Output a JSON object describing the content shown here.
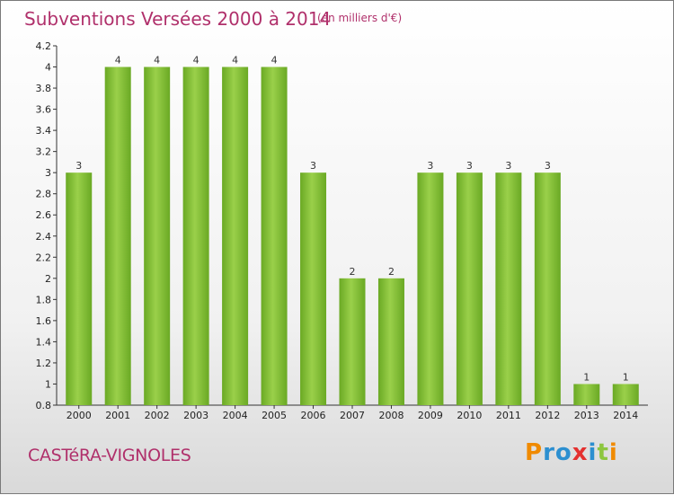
{
  "chart_data": {
    "type": "bar",
    "title": "Subventions Versées 2000 à 2014",
    "subtitle": "(en milliers d'€)",
    "categories": [
      "2000",
      "2001",
      "2002",
      "2003",
      "2004",
      "2005",
      "2006",
      "2007",
      "2008",
      "2009",
      "2010",
      "2011",
      "2012",
      "2013",
      "2014"
    ],
    "values": [
      3,
      4,
      4,
      4,
      4,
      4,
      3,
      2,
      2,
      3,
      3,
      3,
      3,
      1,
      1
    ],
    "value_labels": [
      "3",
      "4",
      "4",
      "4",
      "4",
      "4",
      "3",
      "2",
      "2",
      "3",
      "3",
      "3",
      "3",
      "1",
      "1"
    ],
    "ylim": [
      0.8,
      4.2
    ],
    "yticks": [
      "0.8",
      "1",
      "1.2",
      "1.4",
      "1.6",
      "1.8",
      "2",
      "2.2",
      "2.4",
      "2.6",
      "2.8",
      "3",
      "3.2",
      "3.4",
      "3.6",
      "3.8",
      "4",
      "4.2"
    ],
    "xlabel": "",
    "ylabel": "",
    "grid": false,
    "bar_color": "#7dba2e"
  },
  "footer": {
    "commune": "CASTéRA-VIGNOLES",
    "logo": "Proxiti",
    "logo_letters": [
      {
        "ch": "P",
        "color": "#f08a00"
      },
      {
        "ch": "r",
        "color": "#2c8fd0"
      },
      {
        "ch": "o",
        "color": "#2c8fd0"
      },
      {
        "ch": "x",
        "color": "#e4302f"
      },
      {
        "ch": "i",
        "color": "#2c8fd0"
      },
      {
        "ch": "t",
        "color": "#8dc63f"
      },
      {
        "ch": "i",
        "color": "#f08a00"
      }
    ]
  }
}
